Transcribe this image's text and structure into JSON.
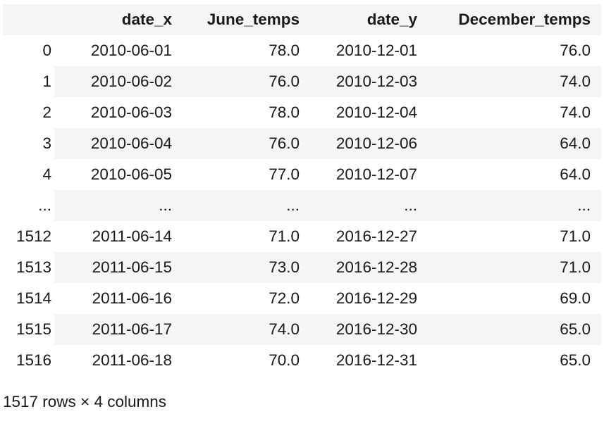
{
  "table": {
    "columns": [
      "",
      "date_x",
      "June_temps",
      "date_y",
      "December_temps"
    ],
    "rows": [
      [
        "0",
        "2010-06-01",
        "78.0",
        "2010-12-01",
        "76.0"
      ],
      [
        "1",
        "2010-06-02",
        "76.0",
        "2010-12-03",
        "74.0"
      ],
      [
        "2",
        "2010-06-03",
        "78.0",
        "2010-12-04",
        "74.0"
      ],
      [
        "3",
        "2010-06-04",
        "76.0",
        "2010-12-06",
        "64.0"
      ],
      [
        "4",
        "2010-06-05",
        "77.0",
        "2010-12-07",
        "64.0"
      ],
      [
        "...",
        "...",
        "...",
        "...",
        "..."
      ],
      [
        "1512",
        "2011-06-14",
        "71.0",
        "2016-12-27",
        "71.0"
      ],
      [
        "1513",
        "2011-06-15",
        "73.0",
        "2016-12-28",
        "71.0"
      ],
      [
        "1514",
        "2011-06-16",
        "72.0",
        "2016-12-29",
        "69.0"
      ],
      [
        "1515",
        "2011-06-17",
        "74.0",
        "2016-12-30",
        "65.0"
      ],
      [
        "1516",
        "2011-06-18",
        "70.0",
        "2016-12-31",
        "65.0"
      ]
    ]
  },
  "footer": {
    "summary": "1517 rows × 4 columns"
  }
}
